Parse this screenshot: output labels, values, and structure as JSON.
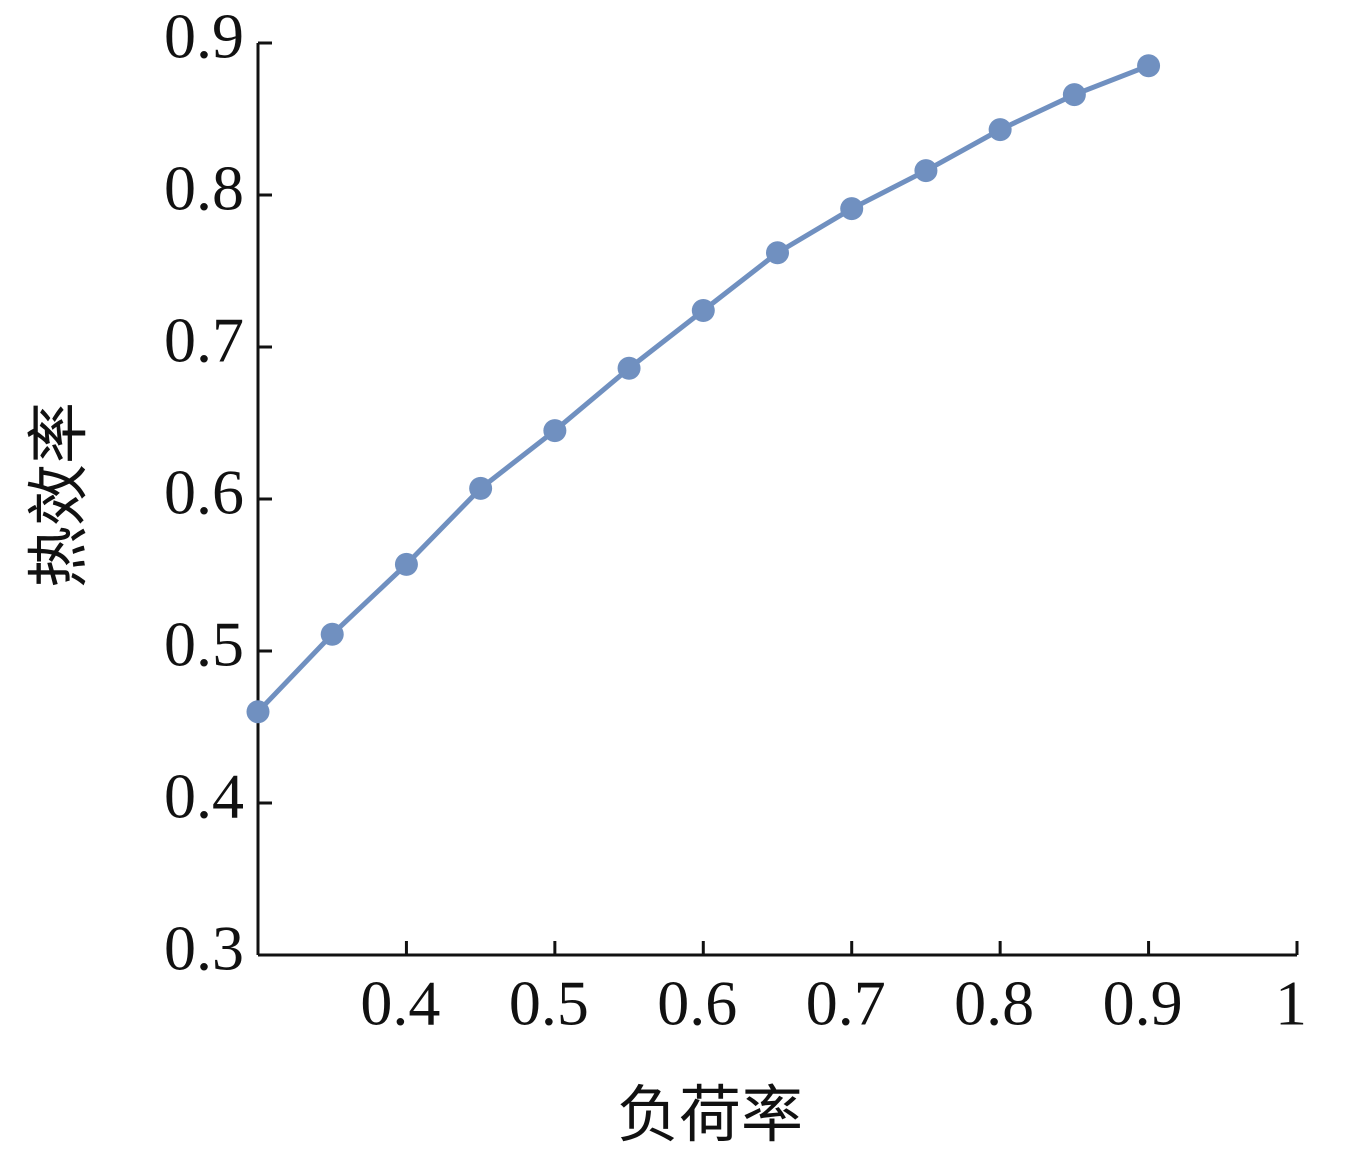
{
  "chart_data": {
    "type": "line",
    "x_label": "负荷率",
    "y_label": "热效率",
    "series": [
      {
        "name": null,
        "color": "#7090c0",
        "x": [
          0.3,
          0.35,
          0.4,
          0.45,
          0.5,
          0.55,
          0.6,
          0.65,
          0.7,
          0.75,
          0.8,
          0.85,
          0.9
        ],
        "values": [
          0.46,
          0.511,
          0.557,
          0.607,
          0.645,
          0.686,
          0.724,
          0.762,
          0.791,
          0.816,
          0.843,
          0.866,
          0.885
        ]
      }
    ],
    "xlim": [
      0.3,
      1
    ],
    "xticks": [
      0.4,
      0.5,
      0.6,
      0.7,
      0.8,
      0.9,
      1
    ],
    "ylim": [
      0.3,
      0.9
    ],
    "yticks": [
      0.3,
      0.4,
      0.5,
      0.6,
      0.7,
      0.8,
      0.9
    ]
  }
}
